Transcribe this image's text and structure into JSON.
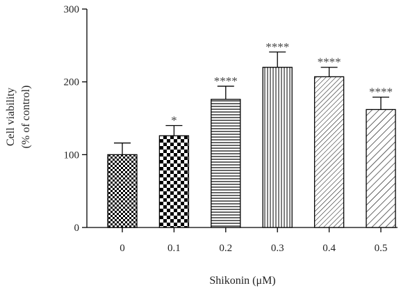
{
  "chart_data": {
    "type": "bar",
    "categories": [
      "0",
      "0.1",
      "0.2",
      "0.3",
      "0.4",
      "0.5"
    ],
    "values": [
      100,
      126,
      176,
      220,
      207,
      162
    ],
    "errors": [
      16,
      14,
      18,
      21,
      13,
      17
    ],
    "significance": [
      "",
      "*",
      "****",
      "****",
      "****",
      "****"
    ],
    "patterns": [
      "small-checker",
      "large-checker",
      "horizontal",
      "vertical",
      "diagonal-fine",
      "diagonal-coarse"
    ],
    "title": "",
    "xlabel": "Shikonin (μM)",
    "ylabel_line1": "Cell viability",
    "ylabel_line2": "(% of control)",
    "ylim": [
      0,
      300
    ],
    "yticks": [
      0,
      100,
      200,
      300
    ],
    "grid": false,
    "colors": {
      "axis": "#000000",
      "bar_fill": "#ffffff",
      "pattern": "#000000",
      "text": "#222222"
    }
  }
}
